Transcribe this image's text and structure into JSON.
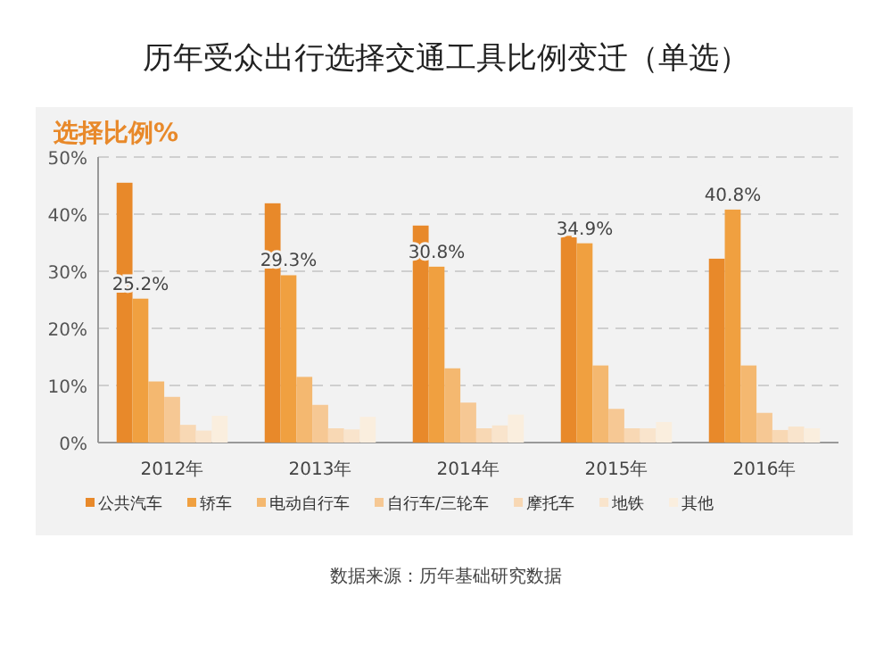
{
  "chart_data": {
    "type": "bar",
    "title": "历年受众出行选择交通工具比例变迁（单选）",
    "ylabel": "选择比例%",
    "categories": [
      "2012年",
      "2013年",
      "2014年",
      "2015年",
      "2016年"
    ],
    "series": [
      {
        "name": "公共汽车",
        "color": "#e8892a",
        "values": [
          45.5,
          41.9,
          38.0,
          36.2,
          32.2
        ]
      },
      {
        "name": "轿车",
        "color": "#f0a040",
        "values": [
          25.2,
          29.3,
          30.8,
          34.9,
          40.8
        ],
        "value_labels": [
          "25.2%",
          "29.3%",
          "30.8%",
          "34.9%",
          "40.8%"
        ]
      },
      {
        "name": "电动自行车",
        "color": "#f4b870",
        "values": [
          10.7,
          11.5,
          13.0,
          13.5,
          13.5
        ]
      },
      {
        "name": "自行车/三轮车",
        "color": "#f6c894",
        "values": [
          8.0,
          6.6,
          7.0,
          5.9,
          5.2
        ]
      },
      {
        "name": "摩托车",
        "color": "#f8d8b4",
        "values": [
          3.1,
          2.5,
          2.5,
          2.5,
          2.2
        ]
      },
      {
        "name": "地铁",
        "color": "#f9e4cc",
        "values": [
          2.1,
          2.3,
          3.0,
          2.5,
          2.8
        ]
      },
      {
        "name": "其他",
        "color": "#faeede",
        "values": [
          4.7,
          4.5,
          4.9,
          3.6,
          2.5
        ]
      }
    ],
    "ylim": [
      0,
      50
    ],
    "yticks": [
      {
        "value": 0,
        "label": "0%"
      },
      {
        "value": 10,
        "label": "10%"
      },
      {
        "value": 20,
        "label": "20%"
      },
      {
        "value": 30,
        "label": "30%"
      },
      {
        "value": 40,
        "label": "40%"
      },
      {
        "value": 50,
        "label": "50%"
      }
    ],
    "grid": "y",
    "legend": "bottom",
    "annotations": [
      "数据来源：历年基础研究数据"
    ]
  }
}
